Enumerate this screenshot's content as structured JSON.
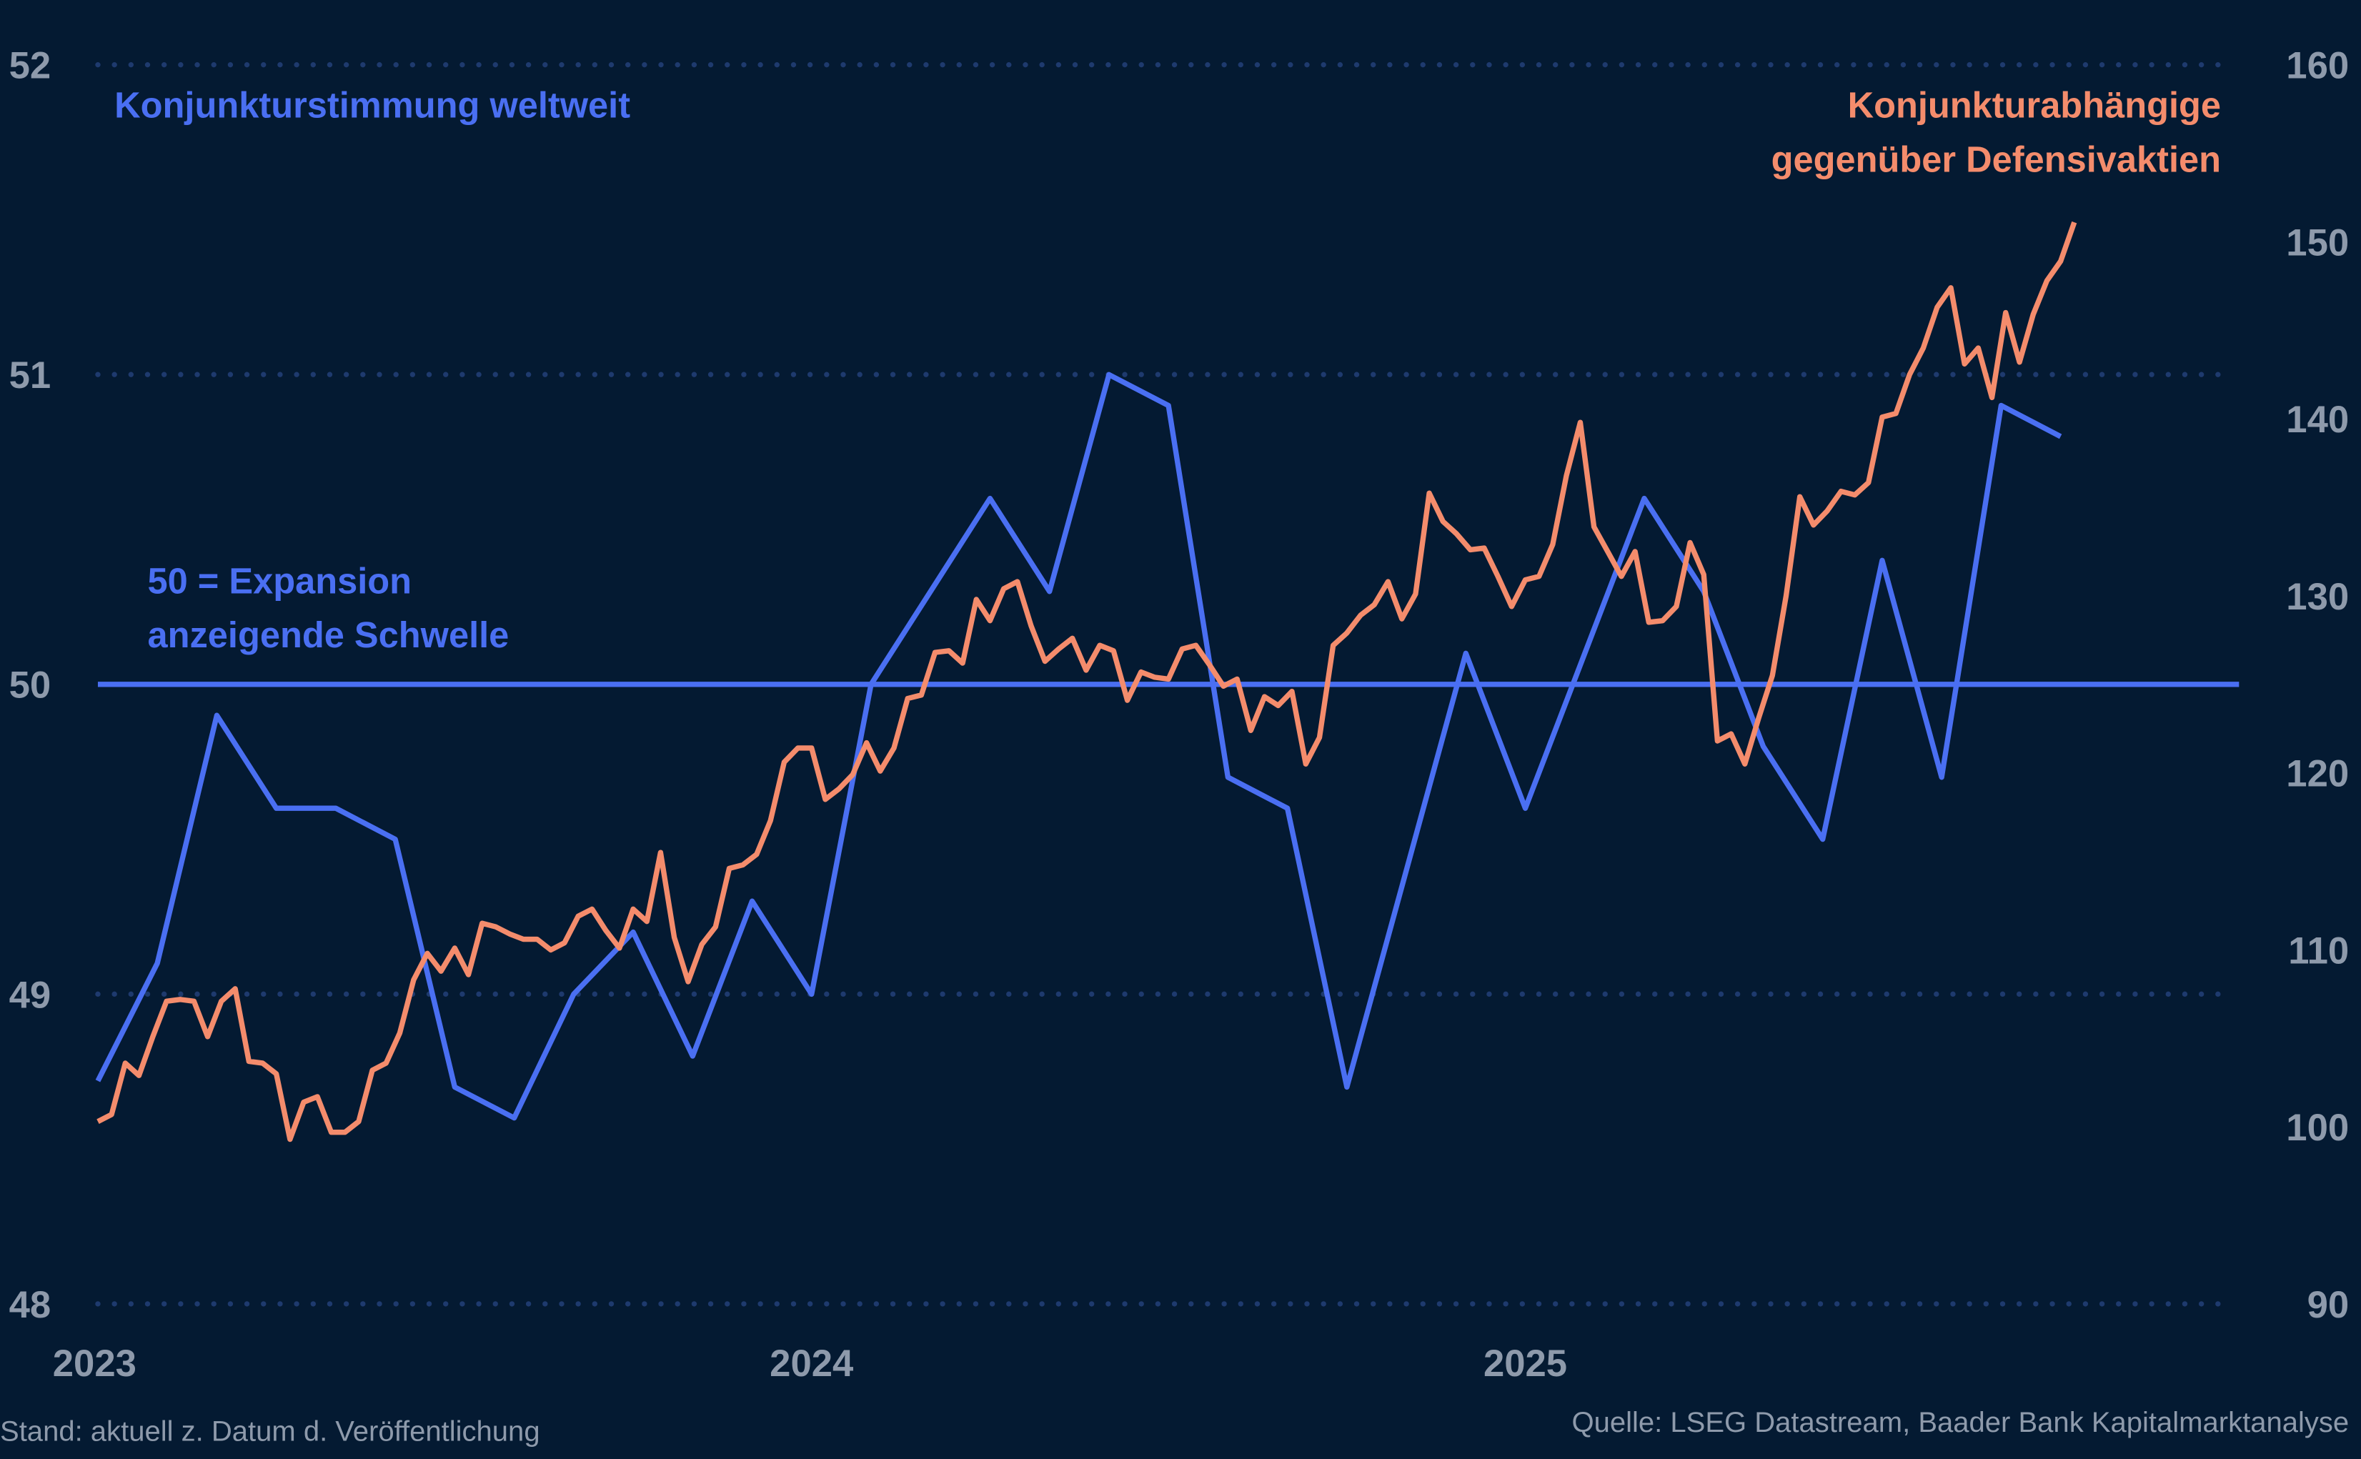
{
  "chart_data": {
    "type": "line",
    "title": "",
    "x_range": [
      2023,
      2026
    ],
    "x_ticks": [
      "2023",
      "2024",
      "2025"
    ],
    "y_left": {
      "range": [
        48,
        52
      ],
      "ticks": [
        "48",
        "49",
        "50",
        "51",
        "52"
      ],
      "grid": "dotted"
    },
    "y_right": {
      "range": [
        90,
        160
      ],
      "ticks": [
        "90",
        "100",
        "110",
        "120",
        "130",
        "140",
        "150",
        "160"
      ]
    },
    "threshold": {
      "value": 50,
      "axis": "left",
      "label_line1": "50 = Expansion",
      "label_line2": "anzeigende Schwelle"
    },
    "series": [
      {
        "name": "Konjunkturstimmung weltweit",
        "axis": "left",
        "color": "#4a6ff2",
        "start": 2023,
        "frequency": "monthly",
        "values": [
          48.72,
          49.1,
          49.9,
          49.6,
          49.6,
          49.5,
          48.7,
          48.6,
          49.0,
          49.2,
          48.8,
          49.3,
          49.0,
          50.0,
          50.3,
          50.6,
          50.3,
          51.0,
          50.9,
          49.7,
          49.6,
          48.7,
          49.4,
          50.1,
          49.6,
          50.1,
          50.6,
          50.3,
          49.8,
          49.5,
          50.4,
          49.7,
          50.9,
          50.8
        ]
      },
      {
        "name_line1": "Konjunkturabhängige",
        "name_line2": "gegenüber Defensivaktien",
        "axis": "right",
        "color": "#f48c6c",
        "start": 2023,
        "frequency": "weekly",
        "values": [
          100.3,
          100.7,
          103.6,
          102.9,
          105.1,
          107.1,
          107.2,
          107.1,
          105.1,
          107.1,
          107.8,
          103.7,
          103.6,
          103.0,
          99.3,
          101.4,
          101.7,
          99.7,
          99.7,
          100.3,
          103.2,
          103.6,
          105.3,
          108.3,
          109.8,
          108.8,
          110.1,
          108.6,
          111.5,
          111.3,
          110.9,
          110.6,
          110.6,
          110.0,
          110.4,
          111.9,
          112.3,
          111.1,
          110.1,
          112.3,
          111.6,
          115.5,
          110.7,
          108.2,
          110.3,
          111.3,
          114.6,
          114.8,
          115.4,
          117.3,
          120.6,
          121.4,
          121.4,
          118.5,
          119.1,
          119.9,
          121.7,
          120.1,
          121.4,
          124.2,
          124.4,
          126.8,
          126.9,
          126.2,
          129.8,
          128.6,
          130.4,
          130.8,
          128.3,
          126.3,
          127.0,
          127.6,
          125.8,
          127.2,
          126.9,
          124.1,
          125.7,
          125.4,
          125.3,
          127.0,
          127.2,
          126.1,
          124.9,
          125.3,
          122.4,
          124.3,
          123.8,
          124.6,
          120.5,
          122.0,
          127.2,
          127.9,
          128.9,
          129.5,
          130.8,
          128.7,
          130.1,
          135.8,
          134.2,
          133.5,
          132.6,
          132.7,
          131.1,
          129.4,
          130.9,
          131.1,
          132.9,
          136.8,
          139.8,
          133.9,
          132.5,
          131.1,
          132.5,
          128.5,
          128.6,
          129.4,
          133.0,
          131.2,
          121.8,
          122.2,
          120.5,
          123.1,
          125.5,
          130.0,
          135.6,
          134.0,
          134.8,
          135.9,
          135.7,
          136.4,
          140.1,
          140.3,
          142.5,
          144.0,
          146.3,
          147.4,
          143.1,
          144.0,
          141.2,
          146.0,
          143.2,
          145.9,
          147.8,
          148.9,
          151.1
        ]
      }
    ],
    "legend": "inline-labels"
  },
  "footer": {
    "left": "Stand: aktuell z. Datum d. Veröffentlichung",
    "right": "Quelle: LSEG Datastream, Baader Bank Kapitalmarktanalyse"
  }
}
